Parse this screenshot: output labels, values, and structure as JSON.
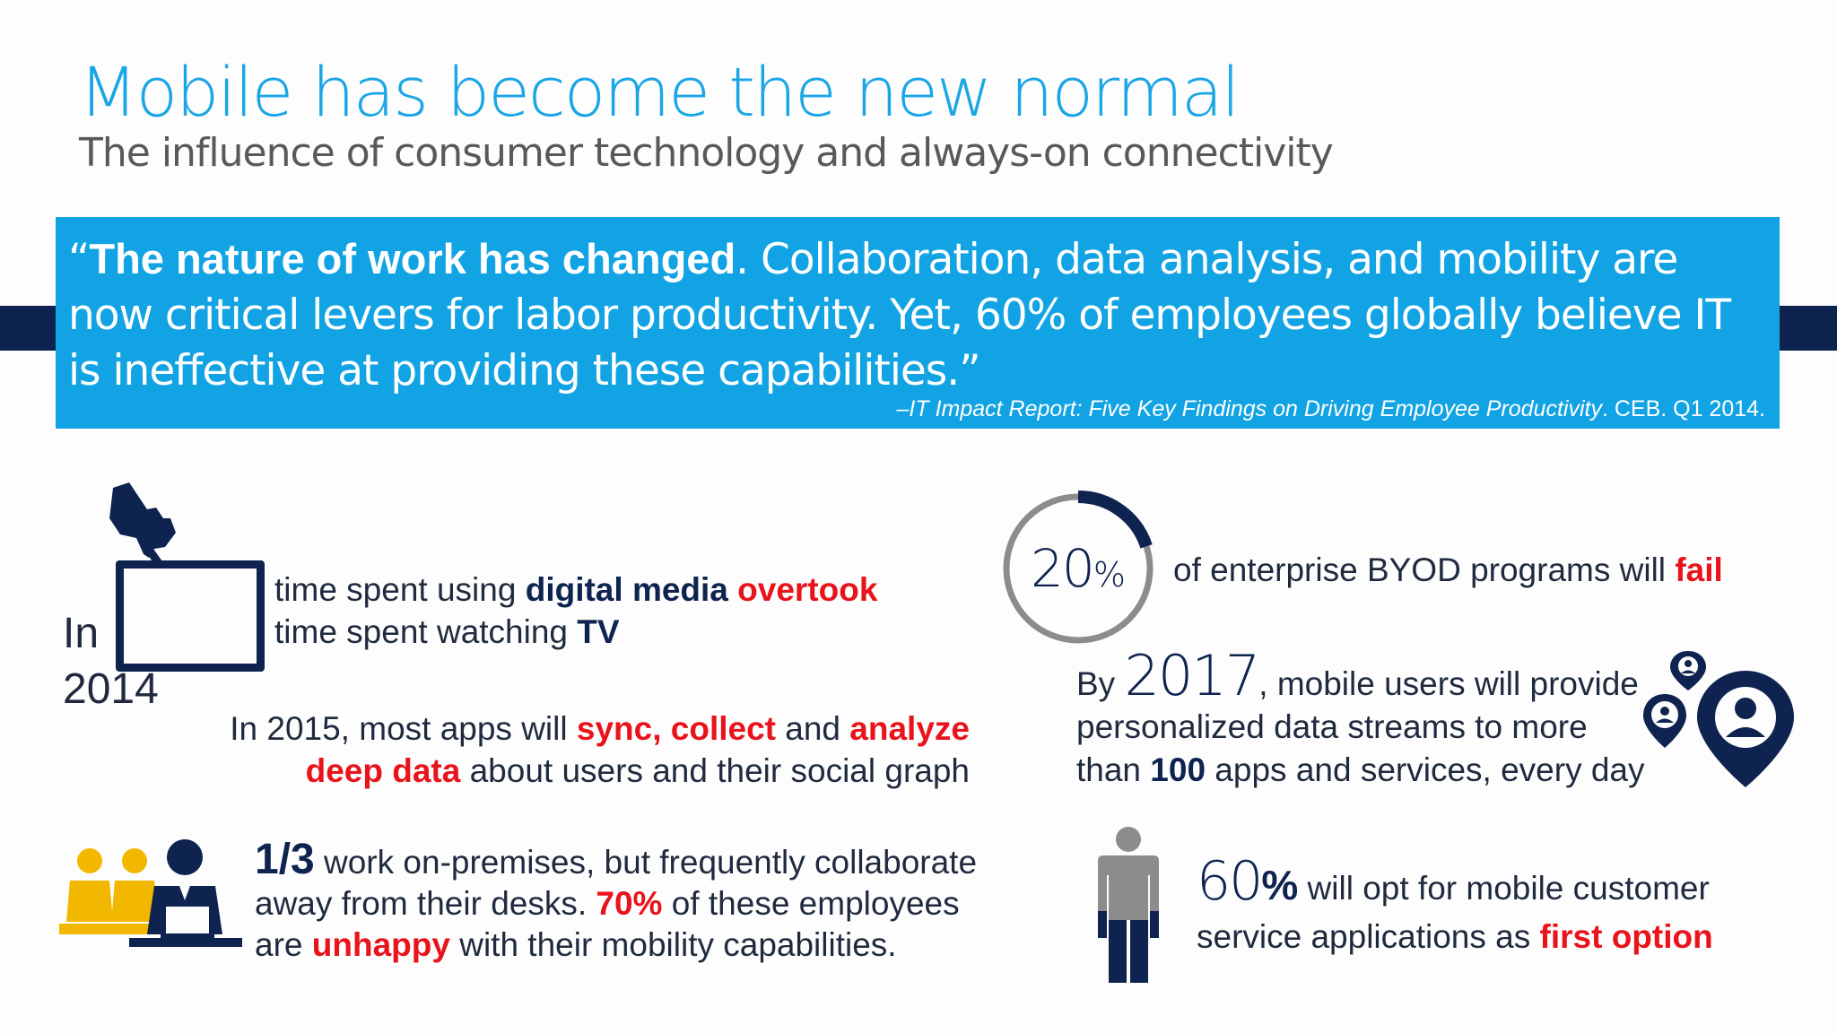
{
  "header": {
    "title": "Mobile has become the new normal",
    "subtitle": "The influence of consumer technology and always-on connectivity"
  },
  "quote": {
    "open": "“",
    "bold": "The nature of work has changed",
    "rest": ". Collaboration, data analysis, and mobility are now critical levers for labor productivity. Yet, 60% of employees globally believe IT is ineffective at providing these capabilities.”",
    "cite_italic": "–IT Impact Report: Five Key Findings on Driving Employee Productivity",
    "cite_rest": ". CEB. Q1 2014."
  },
  "stat_2014": {
    "in": "In",
    "year": "2014",
    "t1": "time spent using ",
    "b1": "digital media",
    "r1": "overtook",
    "t2": "time spent watching ",
    "b2": "TV"
  },
  "stat_2015": {
    "t1": "In 2015, most apps will ",
    "r1": "sync",
    "c1": ", ",
    "r2": "collect",
    "t2": " and ",
    "r3": "analyze",
    "r4": "deep data",
    "t3": " about users and their social graph"
  },
  "stat_third": {
    "b1": "1/3",
    "t1": " work on-premises, but frequently collaborate",
    "t2": "away from their desks. ",
    "r1": "70%",
    "t3": " of these employees",
    "t4": "are ",
    "r2": "unhappy",
    "t5": " with their mobility capabilities."
  },
  "stat_byod": {
    "number": "20",
    "pct": "%",
    "value": 20,
    "t1": "of enterprise BYOD programs will ",
    "r1": "fail"
  },
  "stat_2017": {
    "t1": "By ",
    "year": "2017",
    "t2": ", mobile users will provide",
    "t3": "personalized data streams to more",
    "t4": "than ",
    "b1": "100",
    "t5": " apps and services, every day"
  },
  "stat_60": {
    "number": "60",
    "pct": "%",
    "value": 60,
    "t1": " will opt for mobile customer",
    "t2": "service applications as ",
    "r1": "first option"
  },
  "colors": {
    "accent_blue": "#11a3e3",
    "navy": "#0e2350",
    "red": "#e8131b",
    "gold": "#f2b800",
    "ring_gray": "#8c8c8c"
  },
  "icons": [
    "hand-pointer-icon",
    "tablet-icon",
    "office-workers-icon",
    "progress-ring-icon",
    "location-pins-icon",
    "person-figure-icon"
  ]
}
